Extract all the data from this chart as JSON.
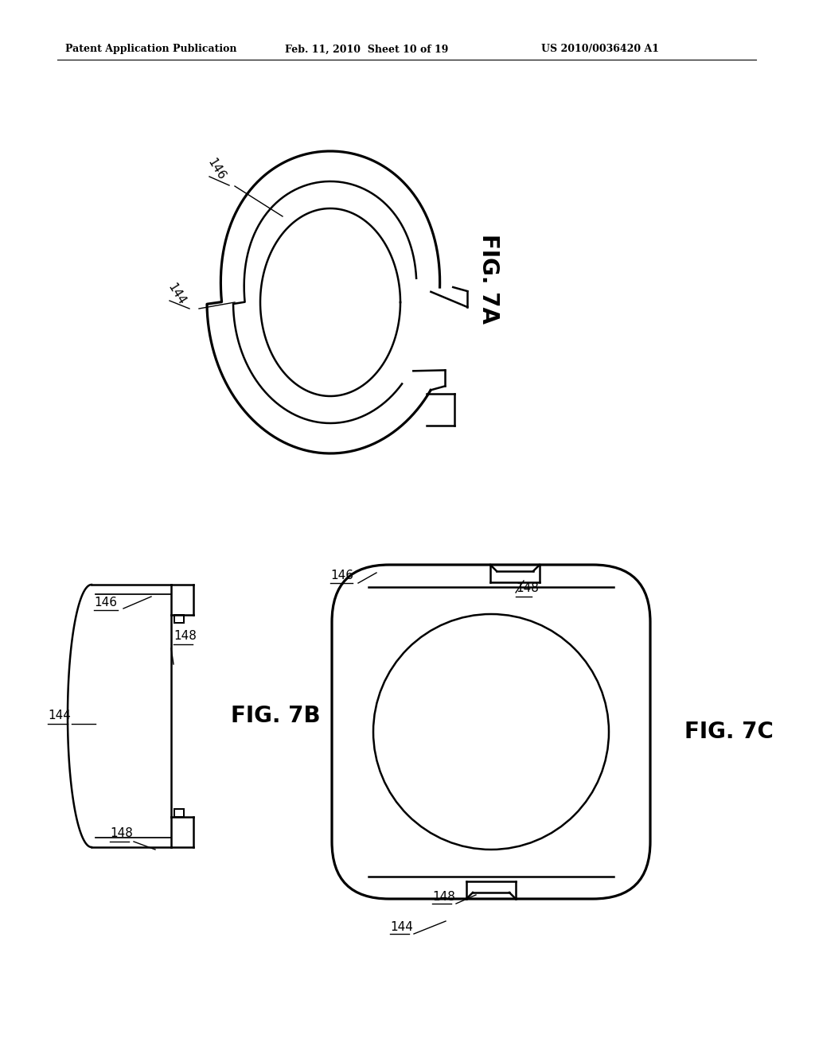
{
  "bg_color": "#ffffff",
  "line_color": "#000000",
  "header_left": "Patent Application Publication",
  "header_mid": "Feb. 11, 2010  Sheet 10 of 19",
  "header_right": "US 2010/0036420 A1",
  "fig7a_label": "FIG. 7A",
  "fig7b_label": "FIG. 7B",
  "fig7c_label": "FIG. 7C",
  "label_144": "144",
  "label_146": "146",
  "label_148": "148"
}
